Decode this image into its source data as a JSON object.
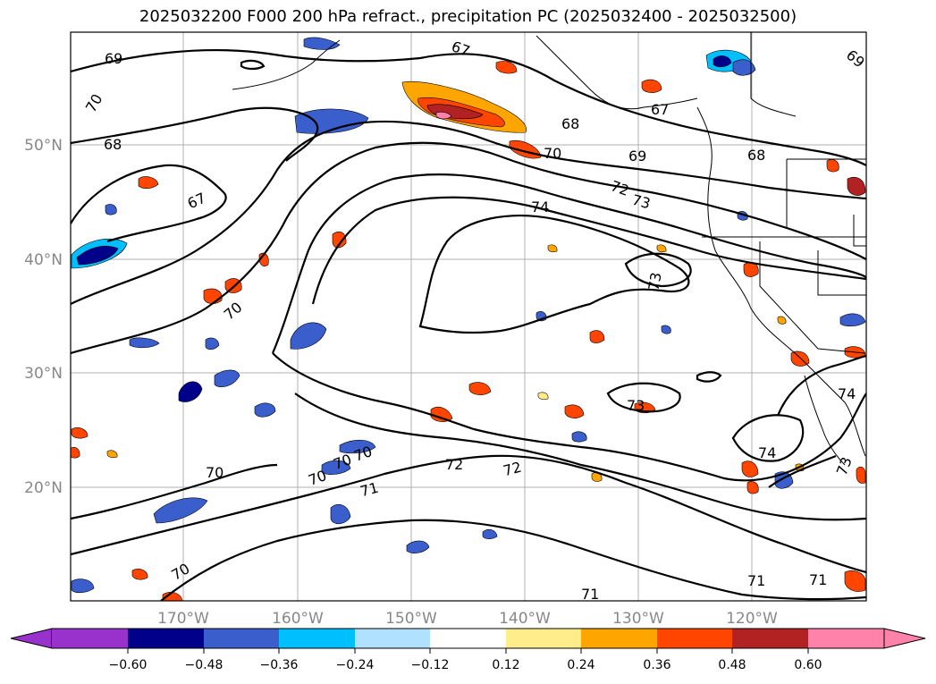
{
  "title": "2025032200 F000 200 hPa refract., precipitation PC (2025032400 - 2025032500)",
  "lat_labels": [
    "50°N",
    "40°N",
    "30°N",
    "20°N"
  ],
  "lon_labels": [
    "170°W",
    "160°W",
    "150°W",
    "140°W",
    "130°W",
    "120°W"
  ],
  "contour_labels": [
    "69",
    "70",
    "68",
    "67",
    "70",
    "67",
    "68",
    "70",
    "69",
    "68",
    "67",
    "69",
    "72",
    "73",
    "74",
    "73",
    "74",
    "74",
    "73",
    "70",
    "70",
    "70",
    "70",
    "71",
    "72",
    "72",
    "71",
    "71",
    "71",
    "70",
    "73"
  ],
  "colorbar": {
    "colors": [
      "#9932cc",
      "#00008b",
      "#3a5fcd",
      "#00bfff",
      "#b0e2ff",
      "#ffffff",
      "#ffec8b",
      "#ffa500",
      "#ff4500",
      "#b22222",
      "#ff82ab",
      "#ff82ab"
    ],
    "ticks": [
      "−0.60",
      "−0.48",
      "−0.36",
      "−0.24",
      "−0.12",
      "0.12",
      "0.24",
      "0.36",
      "0.48",
      "0.60"
    ]
  }
}
